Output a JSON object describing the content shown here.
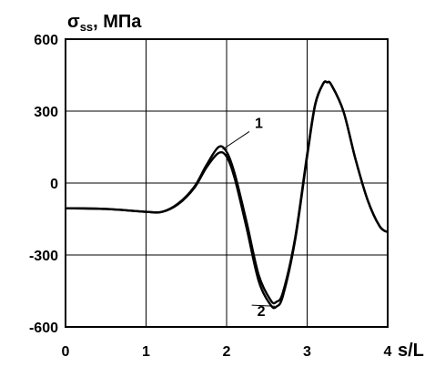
{
  "chart_data": {
    "type": "line",
    "title": "",
    "ylabel": {
      "main": "σ",
      "sub": "ss",
      "unit": ", МПа"
    },
    "xlabel": "s/L",
    "xlim": [
      0,
      4
    ],
    "ylim": [
      -600,
      600
    ],
    "x_ticks": [
      "0",
      "1",
      "2",
      "3",
      "4"
    ],
    "y_ticks": [
      "600",
      "300",
      "0",
      "-300",
      "-600"
    ],
    "grid": true,
    "series": [
      {
        "name": "1",
        "x": [
          0,
          0.5,
          1.0,
          1.2,
          1.4,
          1.6,
          1.75,
          1.9,
          2.0,
          2.1,
          2.25,
          2.4,
          2.55,
          2.62,
          2.7,
          2.85,
          3.0,
          3.1,
          3.2,
          3.25,
          3.3,
          3.45,
          3.6,
          3.75,
          3.9,
          4.0
        ],
        "y": [
          -105,
          -108,
          -120,
          -120,
          -85,
          -15,
          75,
          150,
          130,
          40,
          -165,
          -385,
          -490,
          -495,
          -455,
          -230,
          120,
          330,
          415,
          420,
          410,
          300,
          100,
          -70,
          -180,
          -205
        ]
      },
      {
        "name": "2",
        "x": [
          0,
          0.5,
          1.0,
          1.2,
          1.4,
          1.6,
          1.75,
          1.9,
          2.0,
          2.1,
          2.25,
          2.4,
          2.55,
          2.62,
          2.7,
          2.85,
          3.0,
          3.1,
          3.2,
          3.25,
          3.3,
          3.45,
          3.6,
          3.75,
          3.9,
          4.0
        ],
        "y": [
          -105,
          -108,
          -120,
          -120,
          -88,
          -20,
          65,
          125,
          110,
          20,
          -190,
          -410,
          -510,
          -515,
          -470,
          -240,
          110,
          325,
          415,
          420,
          410,
          300,
          100,
          -70,
          -180,
          -205
        ]
      }
    ],
    "annotations": [
      {
        "text": "1",
        "series": 0,
        "at_x": 1.95,
        "text_x": 2.35,
        "text_y": 230
      },
      {
        "text": "2",
        "series": 1,
        "at_x": 2.6,
        "text_x": 2.38,
        "text_y": -555
      }
    ]
  }
}
